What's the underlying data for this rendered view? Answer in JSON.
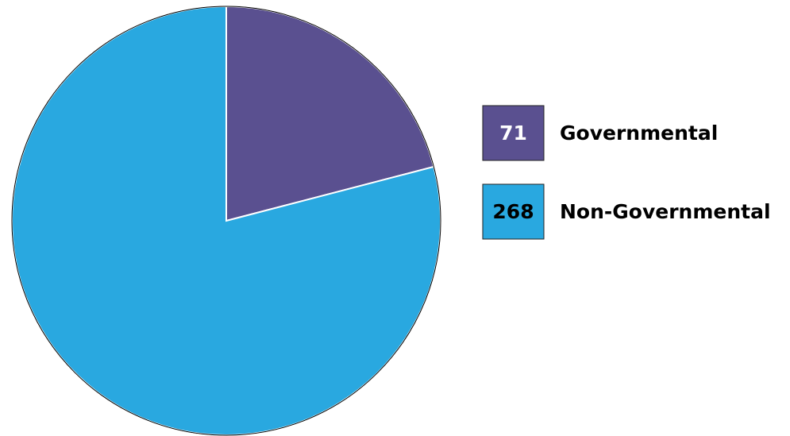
{
  "chart_data": {
    "type": "pie",
    "categories": [
      "Governmental",
      "Non-Governmental"
    ],
    "values": [
      71,
      268
    ],
    "colors": [
      "#5a5090",
      "#29a8e0"
    ]
  }
}
